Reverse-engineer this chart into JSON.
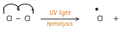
{
  "bg_color": "#ffffff",
  "text_color": "#1a1a1a",
  "arrow_color": "#444444",
  "label_color": "#d4730a",
  "arrow_label_top": "UV light",
  "arrow_label_bottom": "homolysis",
  "figsize": [
    1.79,
    0.5
  ],
  "dpi": 100,
  "xlim": [
    0,
    179
  ],
  "ylim": [
    0,
    50
  ]
}
